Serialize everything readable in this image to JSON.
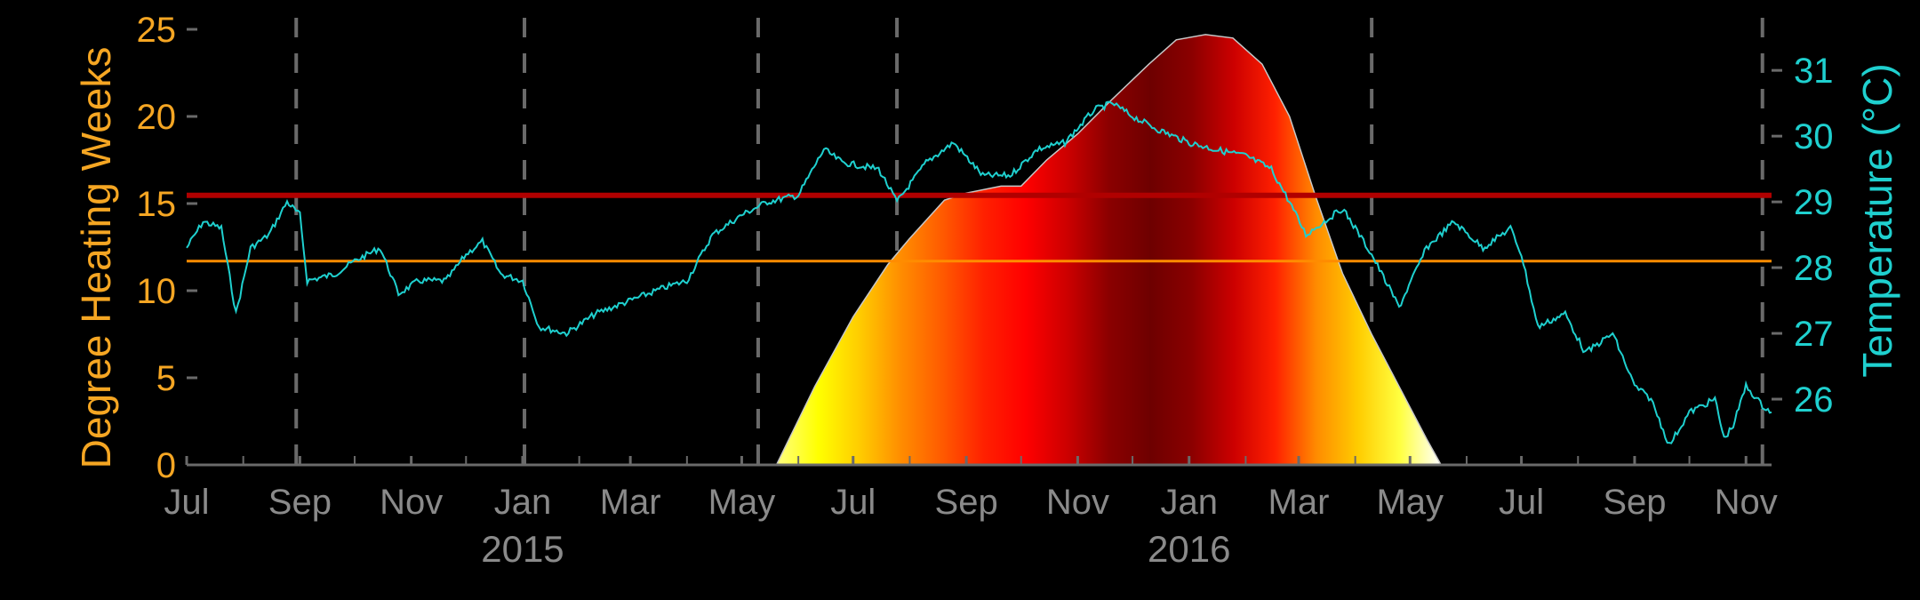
{
  "chart_data": {
    "type": "line",
    "title": "",
    "ylabel_left": "Degree Heating Weeks",
    "ylabel_right": "Temperature (°C)",
    "colors": {
      "background": "#000000",
      "left_axis": "#f5a623",
      "right_axis": "#1fd0cf",
      "x_axis": "#8a8a8a",
      "temperature_line": "#1fd0cf",
      "threshold_high": "#b00000",
      "threshold_low": "#ff8c00",
      "dhw_fill_stops": [
        "#ffff80",
        "#ffff00",
        "#ffcc00",
        "#ff8c00",
        "#ff5a00",
        "#ff2000",
        "#ff0000",
        "#cc0000",
        "#8b0000",
        "#6e0000",
        "#8b0000",
        "#cc0000",
        "#ff2000",
        "#ff8c00",
        "#ffcc00",
        "#ffff40",
        "#ffffff"
      ]
    },
    "x_axis": {
      "start": "2014-07-01",
      "end": "2016-11-15",
      "tick_labels": [
        {
          "label": "Jul",
          "date": "2014-07-01"
        },
        {
          "label": "Sep",
          "date": "2014-09-01"
        },
        {
          "label": "Nov",
          "date": "2014-11-01"
        },
        {
          "label": "Jan",
          "date": "2015-01-01"
        },
        {
          "label": "Mar",
          "date": "2015-03-01"
        },
        {
          "label": "May",
          "date": "2015-05-01"
        },
        {
          "label": "Jul",
          "date": "2015-07-01"
        },
        {
          "label": "Sep",
          "date": "2015-09-01"
        },
        {
          "label": "Nov",
          "date": "2015-11-01"
        },
        {
          "label": "Jan",
          "date": "2016-01-01"
        },
        {
          "label": "Mar",
          "date": "2016-03-01"
        },
        {
          "label": "May",
          "date": "2016-05-01"
        },
        {
          "label": "Jul",
          "date": "2016-07-01"
        },
        {
          "label": "Sep",
          "date": "2016-09-01"
        },
        {
          "label": "Nov",
          "date": "2016-11-01"
        }
      ],
      "year_labels": [
        {
          "label": "2015",
          "date": "2015-01-01"
        },
        {
          "label": "2016",
          "date": "2016-01-01"
        }
      ],
      "dashed_lines": [
        "2014-08-30",
        "2015-01-02",
        "2015-05-10",
        "2015-07-25",
        "2016-04-10",
        "2016-11-10"
      ]
    },
    "y_left": {
      "label": "Degree Heating Weeks",
      "range": [
        0,
        25
      ],
      "ticks": [
        "0",
        "5",
        "10",
        "15",
        "20",
        "25"
      ]
    },
    "y_right": {
      "label": "Temperature (°C)",
      "range": [
        25.0,
        31.8
      ],
      "ticks": [
        "26",
        "27",
        "28",
        "29",
        "30",
        "31"
      ]
    },
    "thresholds": {
      "bleaching_threshold_c": 29.1,
      "mmm_c": 28.1
    },
    "series": [
      {
        "name": "Degree Heating Weeks",
        "axis": "left",
        "kind": "area",
        "points": [
          [
            "2015-05-20",
            0
          ],
          [
            "2015-06-10",
            4.5
          ],
          [
            "2015-07-01",
            8.5
          ],
          [
            "2015-07-20",
            11.5
          ],
          [
            "2015-08-01",
            13
          ],
          [
            "2015-08-20",
            15.2
          ],
          [
            "2015-09-01",
            15.6
          ],
          [
            "2015-09-20",
            16
          ],
          [
            "2015-10-01",
            16
          ],
          [
            "2015-10-15",
            17.5
          ],
          [
            "2015-11-01",
            19
          ],
          [
            "2015-11-20",
            21
          ],
          [
            "2015-12-10",
            23
          ],
          [
            "2015-12-25",
            24.4
          ],
          [
            "2016-01-10",
            24.7
          ],
          [
            "2016-01-25",
            24.5
          ],
          [
            "2016-02-10",
            23
          ],
          [
            "2016-02-25",
            20
          ],
          [
            "2016-03-10",
            15.5
          ],
          [
            "2016-03-25",
            11
          ],
          [
            "2016-04-10",
            7.5
          ],
          [
            "2016-04-25",
            4.5
          ],
          [
            "2016-05-10",
            1.5
          ],
          [
            "2016-05-18",
            0
          ]
        ]
      },
      {
        "name": "Temperature (°C)",
        "axis": "right",
        "kind": "line",
        "points": [
          [
            "2014-07-01",
            28.3
          ],
          [
            "2014-07-10",
            28.7
          ],
          [
            "2014-07-20",
            28.6
          ],
          [
            "2014-07-28",
            27.3
          ],
          [
            "2014-08-05",
            28.3
          ],
          [
            "2014-08-15",
            28.5
          ],
          [
            "2014-08-25",
            29.0
          ],
          [
            "2014-09-01",
            28.8
          ],
          [
            "2014-09-05",
            27.8
          ],
          [
            "2014-09-20",
            27.9
          ],
          [
            "2014-10-01",
            28.1
          ],
          [
            "2014-10-15",
            28.3
          ],
          [
            "2014-10-25",
            27.6
          ],
          [
            "2014-11-05",
            27.8
          ],
          [
            "2014-11-20",
            27.8
          ],
          [
            "2014-12-01",
            28.2
          ],
          [
            "2014-12-10",
            28.4
          ],
          [
            "2014-12-20",
            27.9
          ],
          [
            "2015-01-01",
            27.8
          ],
          [
            "2015-01-10",
            27.1
          ],
          [
            "2015-01-25",
            27.0
          ],
          [
            "2015-02-10",
            27.3
          ],
          [
            "2015-03-01",
            27.5
          ],
          [
            "2015-03-20",
            27.7
          ],
          [
            "2015-04-01",
            27.8
          ],
          [
            "2015-04-15",
            28.5
          ],
          [
            "2015-05-01",
            28.8
          ],
          [
            "2015-05-15",
            29.0
          ],
          [
            "2015-06-01",
            29.1
          ],
          [
            "2015-06-15",
            29.8
          ],
          [
            "2015-06-25",
            29.6
          ],
          [
            "2015-07-15",
            29.5
          ],
          [
            "2015-07-25",
            29.0
          ],
          [
            "2015-08-10",
            29.6
          ],
          [
            "2015-08-25",
            29.9
          ],
          [
            "2015-09-10",
            29.4
          ],
          [
            "2015-09-25",
            29.4
          ],
          [
            "2015-10-10",
            29.8
          ],
          [
            "2015-10-25",
            29.9
          ],
          [
            "2015-11-10",
            30.4
          ],
          [
            "2015-11-20",
            30.5
          ],
          [
            "2015-12-01",
            30.3
          ],
          [
            "2015-12-15",
            30.1
          ],
          [
            "2016-01-01",
            29.9
          ],
          [
            "2016-01-15",
            29.8
          ],
          [
            "2016-02-01",
            29.7
          ],
          [
            "2016-02-15",
            29.5
          ],
          [
            "2016-02-25",
            29.0
          ],
          [
            "2016-03-05",
            28.5
          ],
          [
            "2016-03-15",
            28.7
          ],
          [
            "2016-03-25",
            28.9
          ],
          [
            "2016-04-01",
            28.6
          ],
          [
            "2016-04-10",
            28.2
          ],
          [
            "2016-04-25",
            27.4
          ],
          [
            "2016-05-10",
            28.3
          ],
          [
            "2016-05-25",
            28.7
          ],
          [
            "2016-06-10",
            28.3
          ],
          [
            "2016-06-25",
            28.6
          ],
          [
            "2016-07-01",
            28.2
          ],
          [
            "2016-07-10",
            27.1
          ],
          [
            "2016-07-25",
            27.3
          ],
          [
            "2016-08-05",
            26.7
          ],
          [
            "2016-08-20",
            27.0
          ],
          [
            "2016-09-01",
            26.2
          ],
          [
            "2016-09-10",
            26.0
          ],
          [
            "2016-09-20",
            25.3
          ],
          [
            "2016-10-01",
            25.8
          ],
          [
            "2016-10-15",
            26.0
          ],
          [
            "2016-10-20",
            25.4
          ],
          [
            "2016-10-25",
            25.6
          ],
          [
            "2016-11-01",
            26.2
          ],
          [
            "2016-11-10",
            25.9
          ],
          [
            "2016-11-15",
            25.8
          ]
        ]
      }
    ]
  }
}
